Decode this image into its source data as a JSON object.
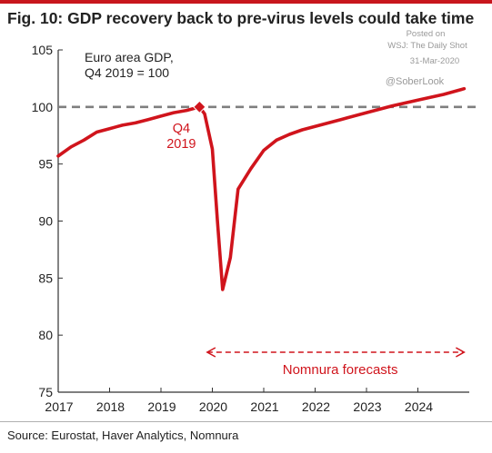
{
  "title": "Fig. 10: GDP recovery back to pre-virus levels could take time",
  "source": "Source: Eurostat, Haver Analytics, Nomnura",
  "watermark": {
    "line1": "Posted on",
    "line2": "WSJ: The Daily Shot",
    "line3": "31-Mar-2020",
    "line4": "@SoberLook"
  },
  "colors": {
    "line": "#d0141c",
    "axis": "#333333",
    "ref_line": "#7f7f7f",
    "title_rule": "#c8161d"
  },
  "chart_data": {
    "type": "line",
    "title": "Fig. 10: GDP recovery back to pre-virus levels could take time",
    "legend_text_line1": "Euro area GDP,",
    "legend_text_line2": "Q4 2019 = 100",
    "xlabel": "",
    "ylabel": "",
    "xlim": [
      2017,
      2025
    ],
    "ylim": [
      75,
      105
    ],
    "x_ticks": [
      2017,
      2018,
      2019,
      2020,
      2021,
      2022,
      2023,
      2024
    ],
    "y_ticks": [
      75,
      80,
      85,
      90,
      95,
      100,
      105
    ],
    "reference_line": {
      "y": 100,
      "style": "dashed"
    },
    "marker": {
      "x": 2019.75,
      "y": 100,
      "label_line1": "Q4",
      "label_line2": "2019"
    },
    "forecast_range": {
      "x_start": 2019.9,
      "x_end": 2024.9,
      "label": "Nomnura forecasts"
    },
    "series": [
      {
        "points": [
          [
            2017.0,
            95.7
          ],
          [
            2017.25,
            96.5
          ],
          [
            2017.5,
            97.1
          ],
          [
            2017.75,
            97.8
          ],
          [
            2018.0,
            98.1
          ],
          [
            2018.25,
            98.4
          ],
          [
            2018.5,
            98.6
          ],
          [
            2018.75,
            98.9
          ],
          [
            2019.0,
            99.2
          ],
          [
            2019.25,
            99.5
          ],
          [
            2019.5,
            99.7
          ],
          [
            2019.75,
            100.0
          ],
          [
            2019.85,
            99.4
          ],
          [
            2020.0,
            96.3
          ],
          [
            2020.1,
            90.0
          ],
          [
            2020.2,
            84.0
          ],
          [
            2020.35,
            86.8
          ],
          [
            2020.5,
            92.8
          ],
          [
            2020.75,
            94.6
          ],
          [
            2021.0,
            96.2
          ],
          [
            2021.25,
            97.1
          ],
          [
            2021.5,
            97.6
          ],
          [
            2021.75,
            98.0
          ],
          [
            2022.0,
            98.3
          ],
          [
            2022.5,
            98.9
          ],
          [
            2023.0,
            99.5
          ],
          [
            2023.5,
            100.1
          ],
          [
            2024.0,
            100.6
          ],
          [
            2024.5,
            101.1
          ],
          [
            2024.9,
            101.6
          ]
        ]
      }
    ]
  }
}
